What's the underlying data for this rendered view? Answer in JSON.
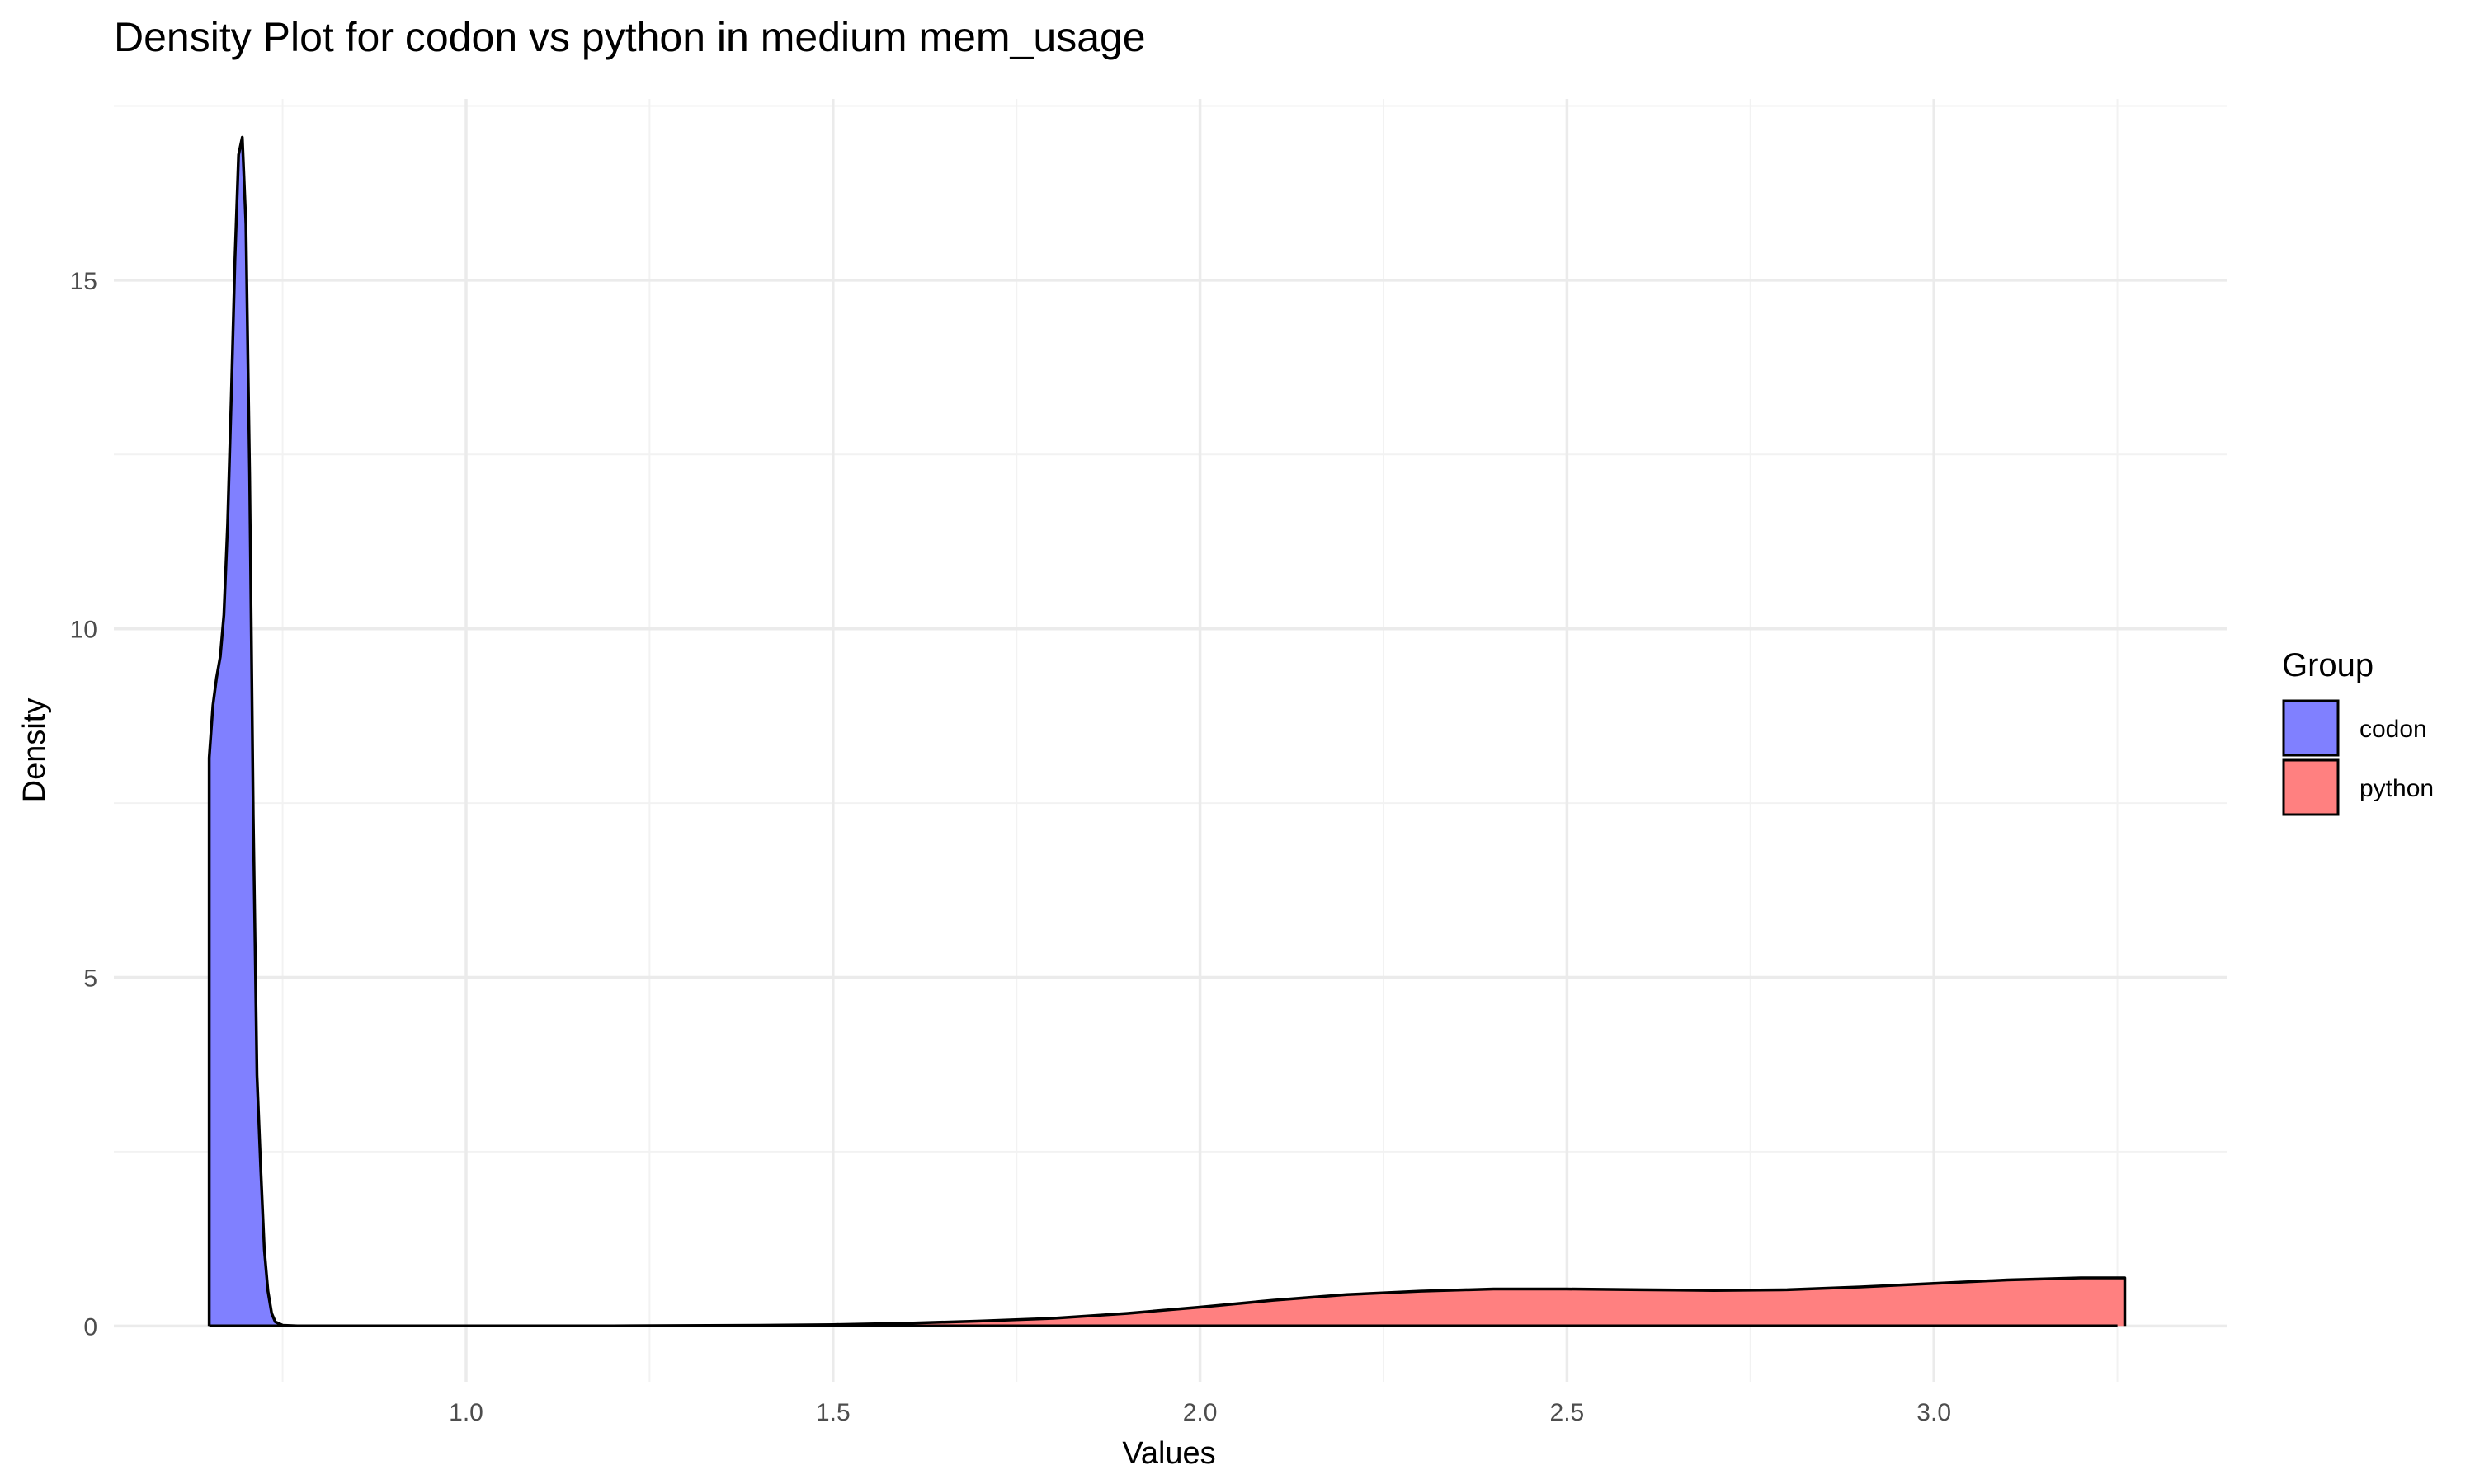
{
  "chart_data": {
    "type": "area",
    "title": "Density Plot for codon vs python in medium mem_usage",
    "xlabel": "Values",
    "ylabel": "Density",
    "xlim": [
      0.52,
      3.4
    ],
    "ylim": [
      -0.8,
      17.6
    ],
    "x_ticks": [
      1.0,
      1.5,
      2.0,
      2.5,
      3.0
    ],
    "x_tick_labels": [
      "1.0",
      "1.5",
      "2.0",
      "2.5",
      "3.0"
    ],
    "x_minor_ticks": [
      0.75,
      1.25,
      1.75,
      2.25,
      2.75,
      3.25
    ],
    "y_ticks": [
      0,
      5,
      10,
      15
    ],
    "y_tick_labels": [
      "0",
      "5",
      "10",
      "15"
    ],
    "y_minor_ticks": [
      2.5,
      7.5,
      12.5,
      17.5
    ],
    "grid": true,
    "legend": {
      "title": "Group",
      "position": "right"
    },
    "series": [
      {
        "name": "codon",
        "color": "#8080ff",
        "points": [
          [
            0.65,
            8.15
          ],
          [
            0.655,
            8.9
          ],
          [
            0.66,
            9.3
          ],
          [
            0.665,
            9.6
          ],
          [
            0.67,
            10.2
          ],
          [
            0.675,
            11.5
          ],
          [
            0.68,
            13.3
          ],
          [
            0.685,
            15.3
          ],
          [
            0.69,
            16.8
          ],
          [
            0.695,
            17.05
          ],
          [
            0.7,
            15.8
          ],
          [
            0.705,
            12.2
          ],
          [
            0.71,
            7.3
          ],
          [
            0.715,
            3.6
          ],
          [
            0.72,
            2.3
          ],
          [
            0.725,
            1.1
          ],
          [
            0.73,
            0.5
          ],
          [
            0.735,
            0.18
          ],
          [
            0.74,
            0.06
          ],
          [
            0.75,
            0.01
          ],
          [
            0.77,
            0.0
          ],
          [
            3.25,
            0.0
          ]
        ]
      },
      {
        "name": "python",
        "color": "#ff8080",
        "points": [
          [
            0.65,
            0.0
          ],
          [
            1.0,
            0.0
          ],
          [
            1.2,
            0.002
          ],
          [
            1.4,
            0.01
          ],
          [
            1.5,
            0.02
          ],
          [
            1.6,
            0.04
          ],
          [
            1.7,
            0.07
          ],
          [
            1.8,
            0.11
          ],
          [
            1.9,
            0.18
          ],
          [
            2.0,
            0.27
          ],
          [
            2.1,
            0.37
          ],
          [
            2.2,
            0.45
          ],
          [
            2.3,
            0.5
          ],
          [
            2.4,
            0.53
          ],
          [
            2.5,
            0.53
          ],
          [
            2.6,
            0.52
          ],
          [
            2.7,
            0.51
          ],
          [
            2.8,
            0.52
          ],
          [
            2.9,
            0.56
          ],
          [
            3.0,
            0.61
          ],
          [
            3.1,
            0.66
          ],
          [
            3.2,
            0.69
          ],
          [
            3.26,
            0.69
          ]
        ]
      }
    ]
  }
}
